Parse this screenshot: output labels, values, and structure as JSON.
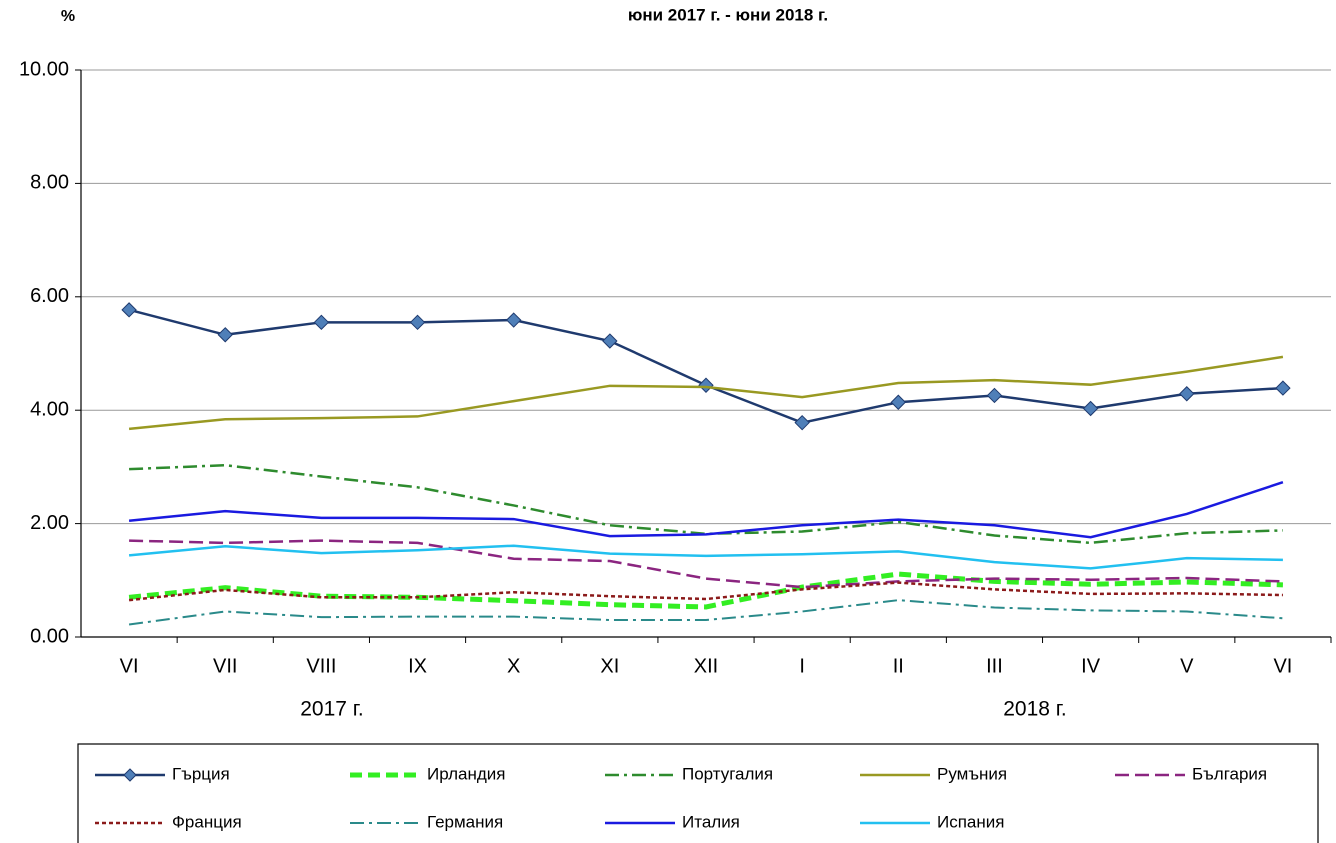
{
  "chart_data": {
    "type": "line",
    "title": "юни 2017 г. - юни 2018 г.",
    "y_label": "%",
    "year_labels": [
      "2017 г.",
      "2018 г."
    ],
    "categories": [
      "VI",
      "VII",
      "VIII",
      "IX",
      "X",
      "XI",
      "XII",
      "I",
      "II",
      "III",
      "IV",
      "V",
      "VI"
    ],
    "ylim": [
      0,
      10
    ],
    "yticks": [
      {
        "value": 0,
        "label": "0.00"
      },
      {
        "value": 2,
        "label": "2.00"
      },
      {
        "value": 4,
        "label": "4.00"
      },
      {
        "value": 6,
        "label": "6.00"
      },
      {
        "value": 8,
        "label": "8.00"
      },
      {
        "value": 10,
        "label": "10.00"
      }
    ],
    "grid": true,
    "series": [
      {
        "name": "Гърция",
        "color": "#1f3a6e",
        "dash": "none",
        "width": 2.5,
        "marker": "diamond",
        "values": [
          5.77,
          5.33,
          5.55,
          5.55,
          5.59,
          5.22,
          4.44,
          3.78,
          4.14,
          4.26,
          4.03,
          4.29,
          4.39
        ]
      },
      {
        "name": "Ирландия",
        "color": "#33ee22",
        "dash": "12 6",
        "width": 5,
        "marker": "none",
        "values": [
          0.7,
          0.87,
          0.72,
          0.7,
          0.64,
          0.57,
          0.53,
          0.88,
          1.11,
          0.98,
          0.93,
          0.97,
          0.92
        ]
      },
      {
        "name": "Португалия",
        "color": "#2e8b2e",
        "dash": "14 5 3 5",
        "width": 2.5,
        "marker": "none",
        "values": [
          2.96,
          3.03,
          2.83,
          2.64,
          2.32,
          1.97,
          1.82,
          1.86,
          2.03,
          1.79,
          1.66,
          1.83,
          1.88
        ]
      },
      {
        "name": "Румъния",
        "color": "#999922",
        "dash": "none",
        "width": 2.5,
        "marker": "none",
        "values": [
          3.67,
          3.84,
          3.86,
          3.89,
          4.16,
          4.43,
          4.41,
          4.23,
          4.48,
          4.53,
          4.45,
          4.68,
          4.94
        ]
      },
      {
        "name": "България",
        "color": "#8b2580",
        "dash": "14 6",
        "width": 2.5,
        "marker": "none",
        "values": [
          1.7,
          1.66,
          1.7,
          1.66,
          1.38,
          1.34,
          1.03,
          0.88,
          0.98,
          1.03,
          1.01,
          1.04,
          0.98
        ]
      },
      {
        "name": "Франция",
        "color": "#8b1a1a",
        "dash": "4 3",
        "width": 2.5,
        "marker": "none",
        "values": [
          0.65,
          0.83,
          0.7,
          0.7,
          0.79,
          0.72,
          0.67,
          0.84,
          0.96,
          0.84,
          0.76,
          0.77,
          0.74
        ]
      },
      {
        "name": "Германия",
        "color": "#2a8a8a",
        "dash": "14 5 3 5",
        "width": 2,
        "marker": "none",
        "values": [
          0.22,
          0.45,
          0.35,
          0.36,
          0.36,
          0.3,
          0.3,
          0.45,
          0.65,
          0.52,
          0.47,
          0.45,
          0.33
        ]
      },
      {
        "name": "Италия",
        "color": "#1a1ae0",
        "dash": "none",
        "width": 2.5,
        "marker": "none",
        "values": [
          2.05,
          2.22,
          2.1,
          2.1,
          2.08,
          1.78,
          1.81,
          1.97,
          2.07,
          1.97,
          1.76,
          2.17,
          2.73
        ]
      },
      {
        "name": "Испания",
        "color": "#22c0f0",
        "dash": "none",
        "width": 2.5,
        "marker": "none",
        "values": [
          1.44,
          1.6,
          1.48,
          1.53,
          1.61,
          1.47,
          1.43,
          1.46,
          1.51,
          1.32,
          1.21,
          1.39,
          1.36
        ]
      }
    ]
  }
}
